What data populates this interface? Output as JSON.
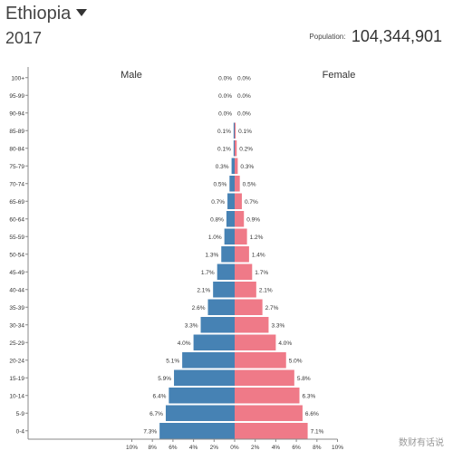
{
  "header": {
    "country": "Ethiopia",
    "year": "2017",
    "population_label": "Population:",
    "population_value": "104,344,901"
  },
  "watermark": "数财有话说",
  "chart_data": {
    "type": "bar",
    "orientation": "horizontal-mirrored",
    "categories": [
      "100+",
      "95-99",
      "90-94",
      "85-89",
      "80-84",
      "75-79",
      "70-74",
      "65-69",
      "60-64",
      "55-59",
      "50-54",
      "45-49",
      "40-44",
      "35-39",
      "30-34",
      "25-29",
      "20-24",
      "15-19",
      "10-14",
      "5-9",
      "0-4"
    ],
    "series": [
      {
        "name": "Male",
        "side": "left",
        "color": "#4682b4",
        "values": [
          0.0,
          0.0,
          0.0,
          0.1,
          0.1,
          0.3,
          0.5,
          0.7,
          0.8,
          1.0,
          1.3,
          1.7,
          2.1,
          2.6,
          3.3,
          4.0,
          5.1,
          5.9,
          6.4,
          6.7,
          7.3
        ],
        "labels": [
          "0.0%",
          "0.0%",
          "0.0%",
          "0.1%",
          "0.1%",
          "0.3%",
          "0.5%",
          "0.7%",
          "0.8%",
          "1.0%",
          "1.3%",
          "1.7%",
          "2.1%",
          "2.6%",
          "3.3%",
          "4.0%",
          "5.1%",
          "5.9%",
          "6.4%",
          "6.7%",
          "7.3%"
        ]
      },
      {
        "name": "Female",
        "side": "right",
        "color": "#ef7a88",
        "values": [
          0.0,
          0.0,
          0.0,
          0.1,
          0.2,
          0.3,
          0.5,
          0.7,
          0.9,
          1.2,
          1.4,
          1.7,
          2.1,
          2.7,
          3.3,
          4.0,
          5.0,
          5.8,
          6.3,
          6.6,
          7.1
        ],
        "labels": [
          "0.0%",
          "0.0%",
          "0.0%",
          "0.1%",
          "0.2%",
          "0.3%",
          "0.5%",
          "0.7%",
          "0.9%",
          "1.2%",
          "1.4%",
          "1.7%",
          "2.1%",
          "2.7%",
          "3.3%",
          "4.0%",
          "5.0%",
          "5.8%",
          "6.3%",
          "6.6%",
          "7.1%"
        ]
      }
    ],
    "xlim": [
      -10,
      10
    ],
    "x_ticks": [
      -10,
      -8,
      -6,
      -4,
      -2,
      0,
      2,
      4,
      6,
      8,
      10
    ],
    "x_tick_labels": [
      "10%",
      "8%",
      "6%",
      "4%",
      "2%",
      "0%",
      "2%",
      "4%",
      "6%",
      "8%",
      "10%"
    ],
    "grid": false
  }
}
